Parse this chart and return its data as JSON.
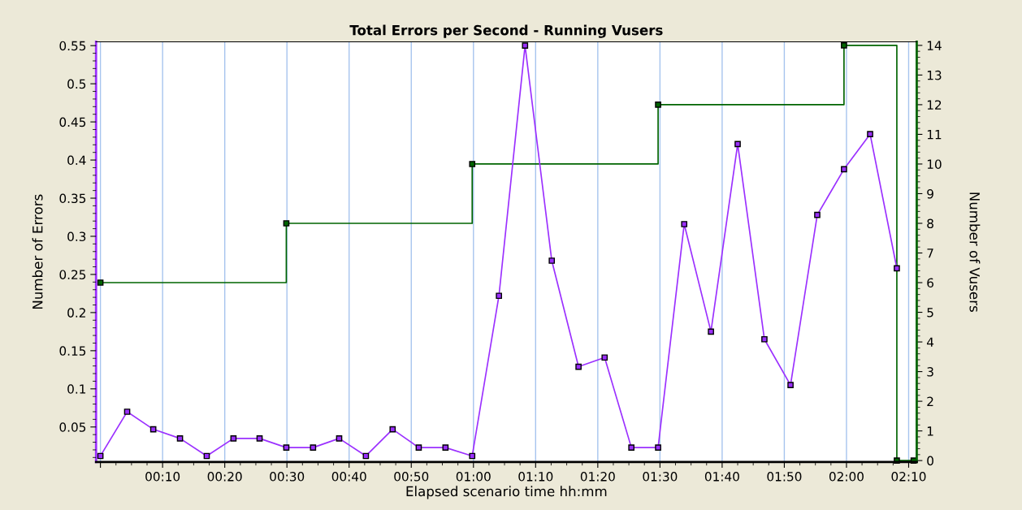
{
  "chart_data": {
    "type": "line",
    "title": "Total Errors per Second - Running Vusers",
    "xlabel": "Elapsed scenario time hh:mm",
    "ylabel": "Number of Errors",
    "y2label": "Number of Vusers",
    "series": [
      {
        "color": "#9b30ff",
        "marker": "square",
        "x": [
          0,
          4.3,
          8.5,
          12.8,
          17.1,
          21.4,
          25.6,
          29.9,
          34.2,
          38.4,
          42.7,
          47.0,
          51.2,
          55.5,
          59.8,
          64.1,
          68.3,
          72.6,
          76.9,
          81.1,
          85.4,
          89.7,
          93.9,
          98.2,
          102.5,
          106.8,
          111.0,
          115.3,
          119.6,
          123.8,
          128.1
        ],
        "values": [
          0.012,
          0.07,
          0.047,
          0.035,
          0.012,
          0.035,
          0.035,
          0.023,
          0.023,
          0.035,
          0.012,
          0.047,
          0.023,
          0.023,
          0.012,
          0.222,
          0.55,
          0.268,
          0.129,
          0.141,
          0.023,
          0.023,
          0.316,
          0.175,
          0.421,
          0.165,
          0.105,
          0.328,
          0.388,
          0.434,
          0.258
        ]
      },
      {
        "type": "step",
        "axis": "y2",
        "color": "#006400",
        "marker": "square",
        "x": [
          0,
          29.9,
          59.8,
          89.7,
          119.6,
          128.1,
          130.8
        ],
        "values": [
          6,
          8,
          10,
          12,
          14,
          0,
          0
        ]
      }
    ],
    "xlim": [
      -0.7,
      131.3
    ],
    "xticks": [
      {
        "value": 0,
        "label": null
      },
      {
        "value": 10,
        "label": "00:10"
      },
      {
        "value": 20,
        "label": "00:20"
      },
      {
        "value": 30,
        "label": "00:30"
      },
      {
        "value": 40,
        "label": "00:40"
      },
      {
        "value": 50,
        "label": "00:50"
      },
      {
        "value": 60,
        "label": "01:00"
      },
      {
        "value": 70,
        "label": "01:10"
      },
      {
        "value": 80,
        "label": "01:20"
      },
      {
        "value": 90,
        "label": "01:30"
      },
      {
        "value": 100,
        "label": "01:40"
      },
      {
        "value": 110,
        "label": "01:50"
      },
      {
        "value": 120,
        "label": "02:00"
      },
      {
        "value": 130,
        "label": "02:10"
      }
    ],
    "ylim": [
      0.004,
      0.555
    ],
    "yticks": [
      0.05,
      0.1,
      0.15,
      0.2,
      0.25,
      0.3,
      0.35,
      0.4,
      0.45,
      0.5,
      0.55
    ],
    "y2lim": [
      -0.05,
      14.12
    ],
    "y2ticks": [
      0,
      1,
      2,
      3,
      4,
      5,
      6,
      7,
      8,
      9,
      10,
      11,
      12,
      13,
      14
    ],
    "grid": "x"
  }
}
